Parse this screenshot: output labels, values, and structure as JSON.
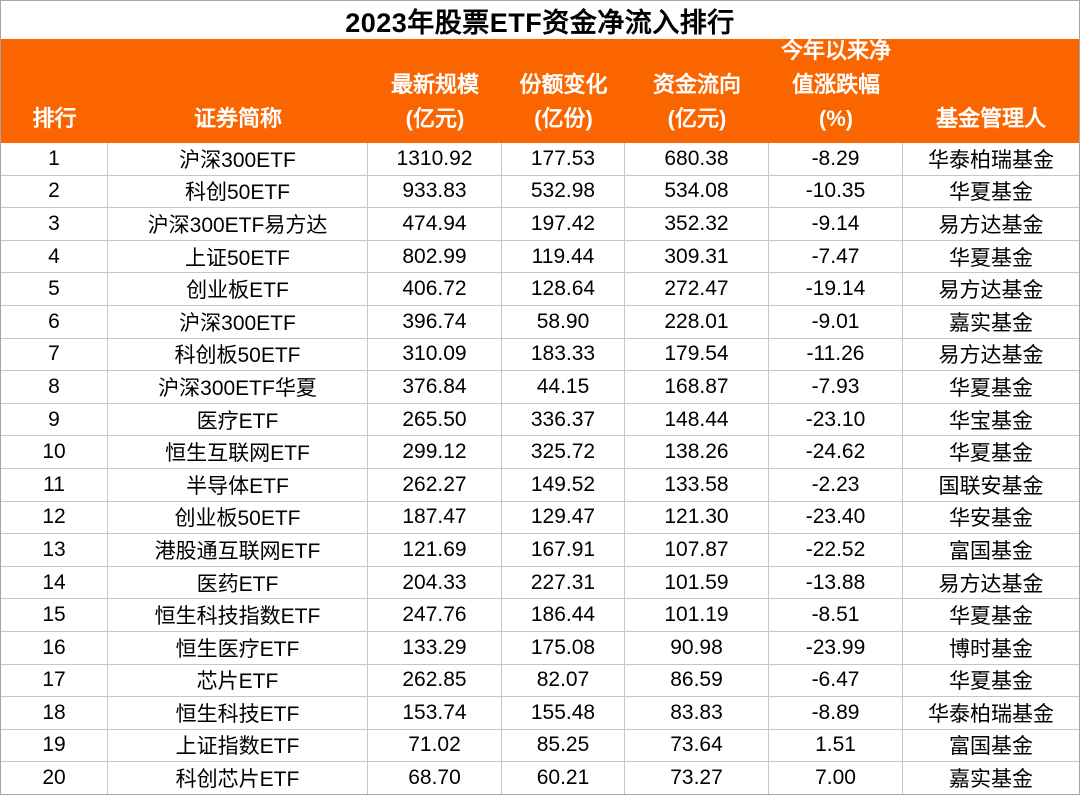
{
  "title": "2023年股票ETF资金净流入排行",
  "colors": {
    "header_bg": "#FB6500",
    "header_text": "#FFFFFF",
    "grid_line": "#C6C6C6",
    "outer_border": "#A6A6A6",
    "row_bg": "#FFFFFF",
    "text": "#000000"
  },
  "table": {
    "columns": [
      {
        "key": "rank",
        "label": "排行"
      },
      {
        "key": "name",
        "label": "证券简称"
      },
      {
        "key": "latest_scale",
        "label": "最新规模\n(亿元)"
      },
      {
        "key": "share_change",
        "label": "份额变化\n(亿份)"
      },
      {
        "key": "fund_flow",
        "label": "资金流向\n(亿元)"
      },
      {
        "key": "ytd_nav_change",
        "label": "今年以来净\n值涨跌幅\n(%)"
      },
      {
        "key": "manager",
        "label": "基金管理人"
      }
    ],
    "rows": [
      [
        "1",
        "沪深300ETF",
        "1310.92",
        "177.53",
        "680.38",
        "-8.29",
        "华泰柏瑞基金"
      ],
      [
        "2",
        "科创50ETF",
        "933.83",
        "532.98",
        "534.08",
        "-10.35",
        "华夏基金"
      ],
      [
        "3",
        "沪深300ETF易方达",
        "474.94",
        "197.42",
        "352.32",
        "-9.14",
        "易方达基金"
      ],
      [
        "4",
        "上证50ETF",
        "802.99",
        "119.44",
        "309.31",
        "-7.47",
        "华夏基金"
      ],
      [
        "5",
        "创业板ETF",
        "406.72",
        "128.64",
        "272.47",
        "-19.14",
        "易方达基金"
      ],
      [
        "6",
        "沪深300ETF",
        "396.74",
        "58.90",
        "228.01",
        "-9.01",
        "嘉实基金"
      ],
      [
        "7",
        "科创板50ETF",
        "310.09",
        "183.33",
        "179.54",
        "-11.26",
        "易方达基金"
      ],
      [
        "8",
        "沪深300ETF华夏",
        "376.84",
        "44.15",
        "168.87",
        "-7.93",
        "华夏基金"
      ],
      [
        "9",
        "医疗ETF",
        "265.50",
        "336.37",
        "148.44",
        "-23.10",
        "华宝基金"
      ],
      [
        "10",
        "恒生互联网ETF",
        "299.12",
        "325.72",
        "138.26",
        "-24.62",
        "华夏基金"
      ],
      [
        "11",
        "半导体ETF",
        "262.27",
        "149.52",
        "133.58",
        "-2.23",
        "国联安基金"
      ],
      [
        "12",
        "创业板50ETF",
        "187.47",
        "129.47",
        "121.30",
        "-23.40",
        "华安基金"
      ],
      [
        "13",
        "港股通互联网ETF",
        "121.69",
        "167.91",
        "107.87",
        "-22.52",
        "富国基金"
      ],
      [
        "14",
        "医药ETF",
        "204.33",
        "227.31",
        "101.59",
        "-13.88",
        "易方达基金"
      ],
      [
        "15",
        "恒生科技指数ETF",
        "247.76",
        "186.44",
        "101.19",
        "-8.51",
        "华夏基金"
      ],
      [
        "16",
        "恒生医疗ETF",
        "133.29",
        "175.08",
        "90.98",
        "-23.99",
        "博时基金"
      ],
      [
        "17",
        "芯片ETF",
        "262.85",
        "82.07",
        "86.59",
        "-6.47",
        "华夏基金"
      ],
      [
        "18",
        "恒生科技ETF",
        "153.74",
        "155.48",
        "83.83",
        "-8.89",
        "华泰柏瑞基金"
      ],
      [
        "19",
        "上证指数ETF",
        "71.02",
        "85.25",
        "73.64",
        "1.51",
        "富国基金"
      ],
      [
        "20",
        "科创芯片ETF",
        "68.70",
        "60.21",
        "73.27",
        "7.00",
        "嘉实基金"
      ]
    ]
  }
}
